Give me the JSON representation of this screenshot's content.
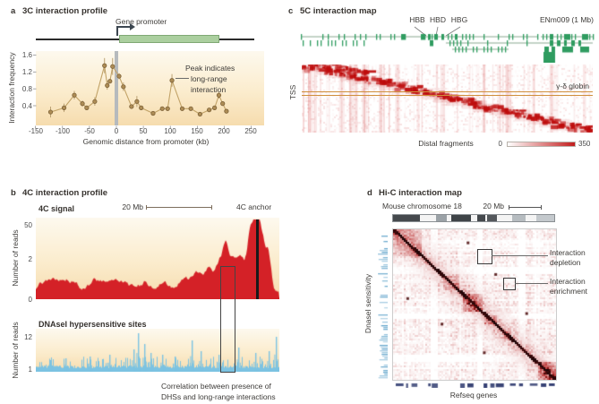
{
  "figure": {
    "background": "#ffffff"
  },
  "panels": {
    "a": {
      "label": "a",
      "title": "3C interaction profile",
      "gene_promoter": "Gene promoter",
      "ylabel": "Interaction frequency",
      "xlabel": "Genomic distance from promoter (kb)",
      "yticks": [
        "1.6",
        "1.2",
        "0.8",
        "0.4"
      ],
      "xticks": [
        "-150",
        "-100",
        "-50",
        "0",
        "50",
        "100",
        "150",
        "200",
        "250"
      ],
      "annotation_lines": [
        "Peak indicates",
        "long-range",
        "interaction"
      ]
    },
    "b": {
      "label": "b",
      "title": "4C interaction profile",
      "signal_title": "4C signal",
      "scalebar": "20 Mb",
      "anchor_label": "4C anchor",
      "reads_ylabel": "Number of reads",
      "signal_yticks": [
        "50",
        "2",
        "0"
      ],
      "dhs_title": "DNAseI hypersensitive sites",
      "dhs_yticks": [
        "12",
        "1"
      ],
      "caption_lines": [
        "Correlation between presence of",
        "DHSs and long-range interactions"
      ]
    },
    "c": {
      "label": "c",
      "title": "5C interaction map",
      "gene_labels": [
        "HBB",
        "HBD",
        "HBG"
      ],
      "region_label": "ENm009 (1 Mb)",
      "ylabel": "TSS",
      "globin_label": "γ-δ globin",
      "xlabel": "Distal fragments",
      "scale_min": "0",
      "scale_max": "350"
    },
    "d": {
      "label": "d",
      "title": "Hi-C interaction map",
      "chromosome_label": "Mouse chromosome 18",
      "scalebar": "20 Mb",
      "ylabel": "DnaseI sensitivity",
      "xlabel": "Refseq genes",
      "depletion_label": "Interaction depletion",
      "enrichment_label": "Interaction enrichment"
    }
  },
  "chart_data": [
    {
      "id": "3c_profile",
      "panel": "a",
      "type": "line",
      "title": "3C interaction profile",
      "xlabel": "Genomic distance from promoter (kb)",
      "ylabel": "Interaction frequency",
      "xlim": [
        -150,
        250
      ],
      "ylim": [
        0,
        1.7
      ],
      "xticks": [
        -150,
        -100,
        -50,
        0,
        50,
        100,
        150,
        200,
        250
      ],
      "yticks": [
        0.4,
        0.8,
        1.2,
        1.6
      ],
      "promoter_position": 0,
      "x": [
        -122,
        -97,
        -78,
        -63,
        -55,
        -40,
        -22,
        -17,
        -12,
        -7,
        5,
        13,
        28,
        38,
        46,
        68,
        85,
        95,
        103,
        122,
        138,
        155,
        172,
        182,
        190,
        197,
        204
      ],
      "y": [
        0.25,
        0.35,
        0.65,
        0.45,
        0.35,
        0.5,
        1.35,
        0.88,
        0.98,
        1.33,
        1.1,
        0.85,
        0.38,
        0.5,
        0.35,
        0.22,
        0.33,
        0.33,
        1.0,
        0.33,
        0.33,
        0.2,
        0.3,
        0.35,
        0.65,
        0.45,
        0.27
      ],
      "yerr": [
        0.13,
        0.1,
        0.1,
        0.07,
        0,
        0.1,
        0.18,
        0.1,
        0,
        0.2,
        0.07,
        0.1,
        0.05,
        0.13,
        0.05,
        0,
        0,
        0,
        0.15,
        0.05,
        0,
        0,
        0,
        0,
        0.08,
        0,
        0
      ],
      "annotation": "Peak indicates long-range interaction",
      "render": {
        "line_color": "#c2a368",
        "marker_fill": "#ad8c55",
        "marker_stroke": "#7c6138",
        "error_color": "#b49a6a",
        "promoter_bar_color": "#b6babd"
      }
    },
    {
      "id": "4c_signal",
      "panel": "b",
      "type": "area",
      "series": "4C signal",
      "ylabel": "Number of reads",
      "yticks": [
        0,
        2,
        50
      ],
      "scalebar": "20 Mb",
      "anchor_frac": 0.905,
      "render": {
        "color": "#d42127",
        "seed": 7,
        "base": [
          12,
          5,
          22
        ],
        "bumps": [
          [
            0.905,
            82,
            3.5
          ],
          [
            0.878,
            50,
            3
          ],
          [
            0.93,
            44,
            3
          ],
          [
            0.955,
            38,
            3
          ],
          [
            0.845,
            28,
            4
          ],
          [
            0.81,
            24,
            4
          ],
          [
            0.78,
            36,
            3
          ],
          [
            0.755,
            22,
            4
          ],
          [
            0.71,
            18,
            4
          ],
          [
            0.66,
            10,
            5
          ],
          [
            0.6,
            8,
            5
          ],
          [
            0.52,
            9,
            5
          ],
          [
            0.45,
            8,
            5
          ],
          [
            0.36,
            6,
            5
          ],
          [
            0.25,
            5,
            5
          ],
          [
            0.15,
            6,
            5
          ],
          [
            0.05,
            5,
            5
          ]
        ]
      }
    },
    {
      "id": "dnasei_sites",
      "panel": "b",
      "type": "area",
      "series": "DNAseI hypersensitive sites",
      "ylabel": "Number of reads",
      "yticks": [
        1,
        12
      ],
      "render": {
        "color": "#7cc3e2",
        "seed": 11,
        "tall_spikes": [
          [
            0.42,
            40
          ],
          [
            0.445,
            28
          ],
          [
            0.4,
            22
          ],
          [
            0.47,
            18
          ],
          [
            0.52,
            16
          ],
          [
            0.64,
            32
          ],
          [
            0.675,
            20
          ],
          [
            0.83,
            24
          ],
          [
            0.9,
            18
          ],
          [
            0.985,
            36
          ],
          [
            0.955,
            20
          ],
          [
            0.3,
            16
          ],
          [
            0.22,
            14
          ],
          [
            0.12,
            12
          ],
          [
            0.06,
            10
          ],
          [
            0.57,
            14
          ],
          [
            0.75,
            16
          ]
        ]
      }
    },
    {
      "id": "5c_map",
      "panel": "c",
      "type": "heatmap",
      "region": "ENm009 (1 Mb)",
      "xlabel": "Distal fragments",
      "ylabel": "TSS",
      "colorbar_range": [
        0,
        350
      ],
      "genes": [
        "HBB",
        "HBD",
        "HBG"
      ],
      "highlight": "γ-δ globin",
      "render": {
        "seed": 21,
        "steps": 22,
        "base_red": "#c21d1d",
        "highlight_line_color": "#cf8f3c",
        "gene_track": {
          "tick_color": "#2f9c60",
          "line_color": "#8aa98f",
          "rows": [
            {
              "y": 5,
              "lines": [
                [
                  4,
                  268
                ],
                [
                  272,
                  330
                ]
              ],
              "ticks": [
                4,
                28,
                34,
                46,
                52,
                64,
                70,
                76,
                88,
                92,
                104,
                108,
                120,
                142,
                146,
                150,
                168,
                172,
                184,
                188,
                192,
                196,
                208,
                224,
                236,
                240,
                252,
                256,
                268,
                274,
                278,
                290,
                294,
                306,
                310,
                326,
                330
              ],
              "blocks": [
                [
                  116,
                  4
                ],
                [
                  138,
                  4
                ],
                [
                  146,
                  3
                ],
                [
                  153,
                  4
                ],
                [
                  161,
                  3
                ],
                [
                  176,
                  3
                ],
                [
                  282,
                  4
                ],
                [
                  298,
                  4
                ],
                [
                  302,
                  3
                ],
                [
                  318,
                  4
                ],
                [
                  322,
                  3
                ]
              ]
            },
            {
              "y": 12,
              "lines": [
                [
                  166,
                  330
                ]
              ],
              "ticks": [
                6,
                14,
                22,
                26,
                34,
                38,
                42,
                50,
                54,
                62,
                66,
                74,
                170,
                174,
                178,
                182,
                190,
                212,
                234,
                256
              ],
              "blocks": [
                [
                  148,
                  4
                ],
                [
                  282,
                  4
                ],
                [
                  290,
                  4
                ],
                [
                  298,
                  3
                ],
                [
                  306,
                  4
                ],
                [
                  314,
                  3
                ]
              ]
            },
            {
              "y": 19,
              "lines": [
                [
                  173,
                  236
                ]
              ],
              "ticks": [
                176,
                180,
                184,
                188,
                196,
                200,
                208,
                212,
                216,
                224,
                228,
                232
              ],
              "blocks": [
                [
                  276,
                  5
                ],
                [
                  284,
                  4
                ],
                [
                  296,
                  12
                ],
                [
                  316,
                  10
                ]
              ]
            },
            {
              "y": 25,
              "lines": [],
              "ticks": [],
              "blocks": [
                [
                  275,
                  13
                ]
              ]
            },
            {
              "y": 31,
              "lines": [],
              "ticks": [],
              "blocks": [
                [
                  275,
                  13
                ]
              ]
            }
          ]
        }
      }
    },
    {
      "id": "hic_map",
      "panel": "d",
      "type": "heatmap",
      "chromosome": "Mouse chromosome 18",
      "scalebar": "20 Mb",
      "xlabel": "Refseq genes",
      "ylabel": "DnaseI sensitivity",
      "annotations": [
        "Interaction depletion",
        "Interaction enrichment"
      ],
      "render": {
        "seed": 33,
        "barcode_seed": 5,
        "refseq_seed": 9,
        "barcode_color": "#66aed4",
        "refseq_color": "#2e3a6e",
        "blocks": [
          [
            0,
            0.17,
            0.55
          ],
          [
            0.3,
            0.4,
            0.3
          ],
          [
            0.42,
            0.54,
            0.75
          ],
          [
            0.56,
            0.63,
            0.45
          ],
          [
            0.67,
            0.72,
            0.25
          ],
          [
            0.88,
            1,
            0.8
          ]
        ],
        "white_bands": [
          [
            0.24,
            0.27
          ],
          [
            0.52,
            0.545
          ],
          [
            0.78,
            0.81
          ]
        ],
        "dots": [
          [
            0.46,
            0.09
          ],
          [
            0.09,
            0.46
          ],
          [
            0.63,
            0.3
          ],
          [
            0.3,
            0.63
          ],
          [
            0.82,
            0.56
          ],
          [
            0.56,
            0.82
          ]
        ],
        "ideogram_segments": [
          {
            "w": 0.165,
            "c": "#45494d"
          },
          {
            "w": 0.1,
            "c": "#f4f4f4"
          },
          {
            "w": 0.07,
            "c": "#9aa1a6"
          },
          {
            "w": 0.025,
            "c": "#f4f4f4"
          },
          {
            "w": 0.125,
            "c": "#3f4448"
          },
          {
            "w": 0.035,
            "c": "#f4f4f4"
          },
          {
            "w": 0.05,
            "c": "#45494d"
          },
          {
            "w": 0.012,
            "c": "#f4f4f4"
          },
          {
            "w": 0.065,
            "c": "#54585c"
          },
          {
            "w": 0.09,
            "c": "#f4f4f4"
          },
          {
            "w": 0.085,
            "c": "#b6bcc0"
          },
          {
            "w": 0.065,
            "c": "#f4f4f4"
          },
          {
            "w": 0.113,
            "c": "#c4c9cd"
          }
        ]
      }
    }
  ]
}
